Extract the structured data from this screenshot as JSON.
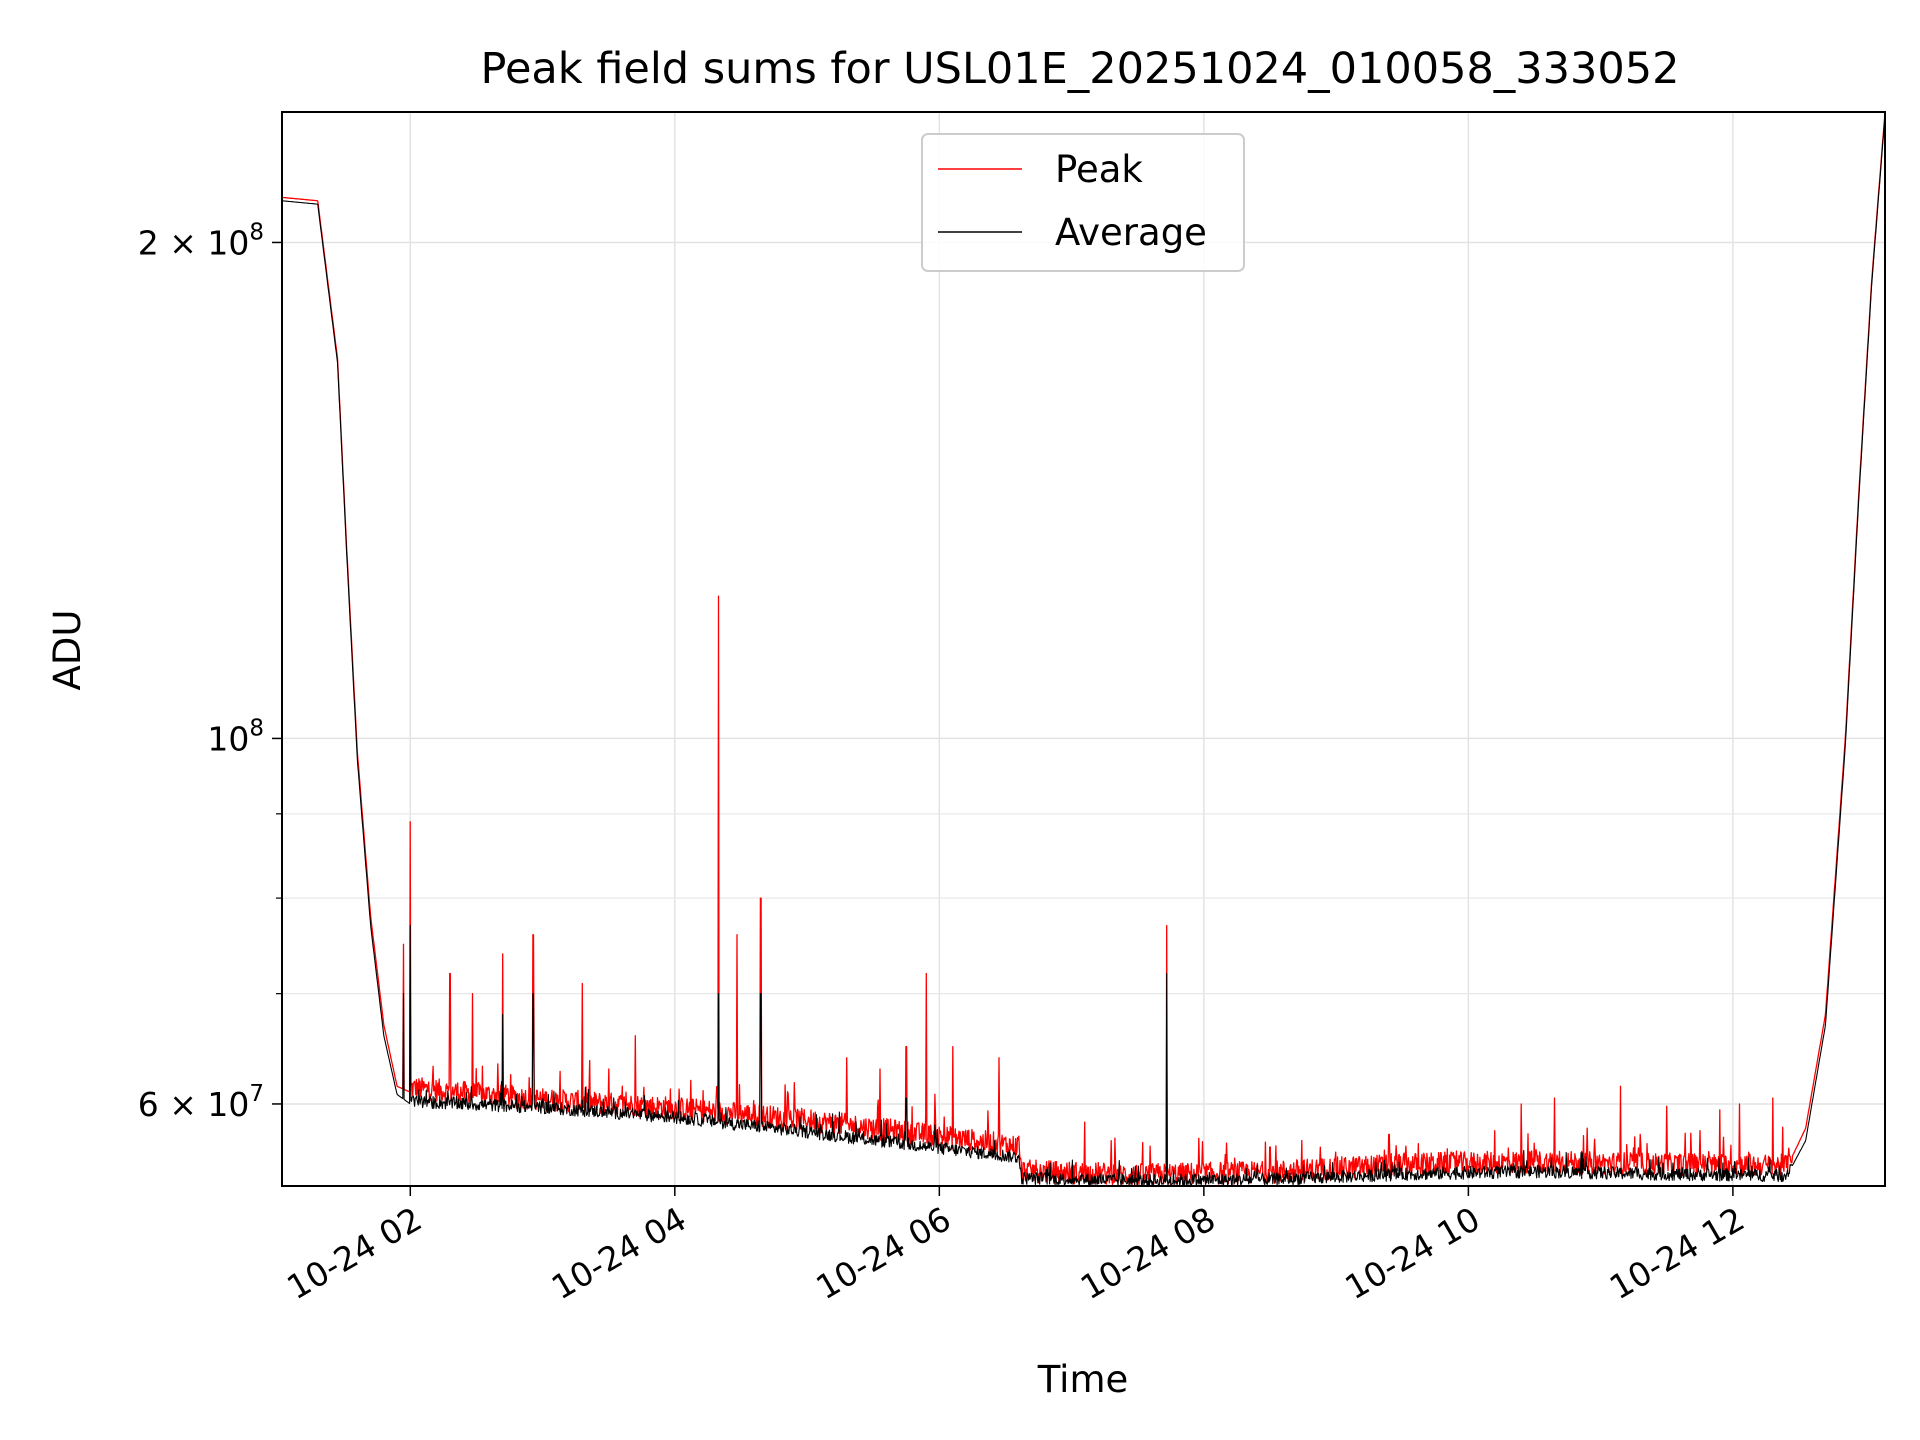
{
  "chart_data": {
    "type": "line",
    "title": "Peak field sums for USL01E_20251024_010058_333052",
    "xlabel": "Time",
    "ylabel": "ADU",
    "yscale": "log",
    "xlim_hours": [
      1.03,
      13.15
    ],
    "ylim": [
      53500000,
      240000000
    ],
    "x_ticks": [
      {
        "value": 2,
        "label": "10-24 02"
      },
      {
        "value": 4,
        "label": "10-24 04"
      },
      {
        "value": 6,
        "label": "10-24 06"
      },
      {
        "value": 8,
        "label": "10-24 08"
      },
      {
        "value": 10,
        "label": "10-24 10"
      },
      {
        "value": 12,
        "label": "10-24 12"
      }
    ],
    "y_major_ticks": [
      {
        "value": 60000000,
        "mantissa": "6",
        "times": "×",
        "base": "10",
        "exp": "7"
      },
      {
        "value": 100000000,
        "mantissa": "",
        "times": "",
        "base": "10",
        "exp": "8"
      },
      {
        "value": 200000000,
        "mantissa": "2",
        "times": "×",
        "base": "10",
        "exp": "8"
      }
    ],
    "y_minor_ticks": [
      70000000,
      80000000,
      90000000
    ],
    "grid": true,
    "legend": {
      "position": "top-center",
      "entries": [
        {
          "label": "Peak",
          "color": "#ff0000"
        },
        {
          "label": "Average",
          "color": "#000000"
        }
      ]
    },
    "series": [
      {
        "name": "Peak",
        "color": "#ff0000",
        "noise": 0.016,
        "baseline": [
          [
            1.03,
            213000000
          ],
          [
            1.3,
            212000000
          ],
          [
            1.45,
            170000000
          ],
          [
            1.52,
            130000000
          ],
          [
            1.6,
            98000000
          ],
          [
            1.7,
            78000000
          ],
          [
            1.8,
            67000000
          ],
          [
            1.9,
            61500000
          ],
          [
            2.0,
            61000000
          ],
          [
            3.0,
            60000000
          ],
          [
            4.0,
            59300000
          ],
          [
            5.0,
            58300000
          ],
          [
            6.0,
            57000000
          ],
          [
            6.6,
            56200000
          ],
          [
            6.62,
            54300000
          ],
          [
            7.5,
            54000000
          ],
          [
            8.5,
            54200000
          ],
          [
            9.5,
            54800000
          ],
          [
            10.5,
            55000000
          ],
          [
            11.5,
            54800000
          ],
          [
            12.4,
            54700000
          ],
          [
            12.55,
            58000000
          ],
          [
            12.7,
            68000000
          ],
          [
            12.85,
            100000000
          ],
          [
            12.95,
            140000000
          ],
          [
            13.05,
            190000000
          ],
          [
            13.15,
            240000000
          ]
        ],
        "spikes": [
          [
            1.6,
            91000000
          ],
          [
            1.65,
            84000000
          ],
          [
            1.95,
            75000000
          ],
          [
            2.0,
            89000000
          ],
          [
            2.3,
            72000000
          ],
          [
            2.47,
            70000000
          ],
          [
            2.7,
            74000000
          ],
          [
            2.93,
            76000000
          ],
          [
            3.3,
            71000000
          ],
          [
            3.5,
            63000000
          ],
          [
            3.7,
            66000000
          ],
          [
            4.33,
            122000000
          ],
          [
            4.47,
            76000000
          ],
          [
            4.65,
            80000000
          ],
          [
            5.3,
            64000000
          ],
          [
            5.55,
            63000000
          ],
          [
            5.75,
            65000000
          ],
          [
            5.9,
            72000000
          ],
          [
            6.1,
            65000000
          ],
          [
            6.45,
            64000000
          ],
          [
            7.1,
            58500000
          ],
          [
            7.3,
            57000000
          ],
          [
            7.72,
            77000000
          ],
          [
            8.5,
            56500000
          ],
          [
            9.4,
            57500000
          ],
          [
            10.2,
            57800000
          ],
          [
            10.4,
            60000000
          ],
          [
            10.65,
            60500000
          ],
          [
            10.9,
            58000000
          ],
          [
            11.15,
            61500000
          ],
          [
            11.3,
            57500000
          ],
          [
            11.5,
            59800000
          ],
          [
            11.75,
            57800000
          ],
          [
            11.9,
            59500000
          ],
          [
            12.05,
            60000000
          ],
          [
            12.3,
            60500000
          ]
        ]
      },
      {
        "name": "Average",
        "color": "#000000",
        "noise": 0.009,
        "baseline": [
          [
            1.03,
            212000000
          ],
          [
            1.3,
            211000000
          ],
          [
            1.45,
            169000000
          ],
          [
            1.52,
            129000000
          ],
          [
            1.6,
            97000000
          ],
          [
            1.7,
            77000000
          ],
          [
            1.8,
            66000000
          ],
          [
            1.9,
            60800000
          ],
          [
            2.0,
            60000000
          ],
          [
            3.0,
            59500000
          ],
          [
            4.0,
            58700000
          ],
          [
            5.0,
            57500000
          ],
          [
            6.0,
            56200000
          ],
          [
            6.6,
            55500000
          ],
          [
            6.62,
            53900000
          ],
          [
            7.5,
            53700000
          ],
          [
            8.5,
            53800000
          ],
          [
            9.5,
            54200000
          ],
          [
            10.5,
            54400000
          ],
          [
            11.5,
            54200000
          ],
          [
            12.4,
            54100000
          ],
          [
            12.55,
            57000000
          ],
          [
            12.7,
            67000000
          ],
          [
            12.85,
            99000000
          ],
          [
            12.95,
            139000000
          ],
          [
            13.05,
            189000000
          ],
          [
            13.15,
            239000000
          ]
        ],
        "spikes": [
          [
            1.95,
            70000000
          ],
          [
            2.0,
            77000000
          ],
          [
            2.7,
            68000000
          ],
          [
            2.93,
            70000000
          ],
          [
            4.33,
            70000000
          ],
          [
            4.65,
            70000000
          ],
          [
            5.75,
            60500000
          ],
          [
            7.72,
            72000000
          ]
        ]
      }
    ]
  }
}
